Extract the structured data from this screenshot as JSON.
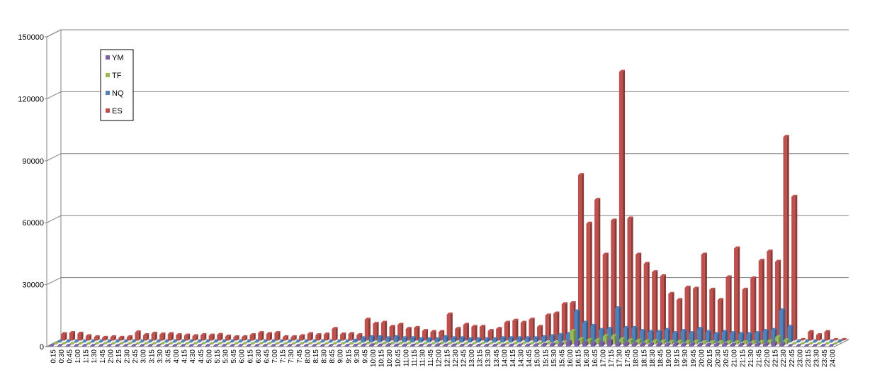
{
  "chart_data": {
    "type": "bar",
    "title": "",
    "xlabel": "",
    "ylabel": "",
    "ylim": [
      0,
      150000
    ],
    "yticks": [
      0,
      30000,
      60000,
      90000,
      120000,
      150000
    ],
    "grid": true,
    "legend_position": "top-left",
    "categories": [
      "0:15",
      "0:30",
      "0:45",
      "1:00",
      "1:15",
      "1:30",
      "1:45",
      "2:00",
      "2:15",
      "2:30",
      "2:45",
      "3:00",
      "3:15",
      "3:30",
      "3:45",
      "4:00",
      "4:15",
      "4:30",
      "4:45",
      "5:00",
      "5:15",
      "5:30",
      "5:45",
      "6:00",
      "6:15",
      "6:30",
      "6:45",
      "7:00",
      "7:15",
      "7:30",
      "7:45",
      "8:00",
      "8:15",
      "8:30",
      "8:45",
      "9:00",
      "9:15",
      "9:30",
      "9:45",
      "10:00",
      "10:15",
      "10:30",
      "10:45",
      "11:00",
      "11:15",
      "11:30",
      "11:45",
      "12:00",
      "12:15",
      "12:30",
      "12:45",
      "13:00",
      "13:15",
      "13:30",
      "13:45",
      "14:00",
      "14:15",
      "14:30",
      "14:45",
      "15:00",
      "15:15",
      "15:30",
      "15:45",
      "16:00",
      "16:15",
      "16:30",
      "16:45",
      "17:00",
      "17:15",
      "17:30",
      "17:45",
      "18:00",
      "18:15",
      "18:30",
      "18:45",
      "19:00",
      "19:15",
      "19:30",
      "19:45",
      "20:00",
      "20:15",
      "20:30",
      "20:45",
      "21:00",
      "21:15",
      "21:30",
      "21:45",
      "22:00",
      "22:15",
      "22:30",
      "22:45",
      "23:00",
      "23:15",
      "23:30",
      "23:45",
      "24:00"
    ],
    "series": [
      {
        "name": "YM",
        "color": "#7f5fa9",
        "values": [
          0,
          0,
          0,
          0,
          0,
          0,
          0,
          0,
          0,
          0,
          0,
          0,
          0,
          0,
          0,
          0,
          0,
          0,
          0,
          0,
          0,
          0,
          0,
          0,
          0,
          0,
          0,
          0,
          0,
          0,
          0,
          0,
          0,
          0,
          0,
          0,
          200,
          300,
          400,
          500,
          400,
          500,
          400,
          400,
          300,
          300,
          300,
          500,
          400,
          400,
          300,
          300,
          300,
          300,
          300,
          400,
          400,
          400,
          400,
          500,
          700,
          800,
          1000,
          2000,
          2000,
          1500,
          1200,
          1500,
          2500,
          1200,
          1200,
          1000,
          900,
          900,
          1000,
          800,
          900,
          800,
          1000,
          700,
          700,
          800,
          800,
          700,
          700,
          800,
          900,
          1000,
          1500,
          1000,
          0,
          0,
          0,
          0,
          0,
          0
        ]
      },
      {
        "name": "TF",
        "color": "#9bbb59",
        "values": [
          0,
          0,
          0,
          0,
          0,
          0,
          0,
          0,
          0,
          0,
          0,
          0,
          0,
          0,
          0,
          0,
          0,
          0,
          0,
          0,
          0,
          0,
          0,
          0,
          0,
          0,
          0,
          0,
          0,
          0,
          0,
          0,
          0,
          0,
          0,
          0,
          100,
          200,
          300,
          300,
          300,
          300,
          300,
          300,
          200,
          200,
          200,
          400,
          300,
          300,
          200,
          200,
          200,
          200,
          300,
          300,
          300,
          300,
          300,
          400,
          500,
          600,
          800,
          6500,
          2500,
          2000,
          2000,
          4000,
          4000,
          2500,
          2000,
          1800,
          1500,
          1500,
          1500,
          1200,
          1300,
          1200,
          1300,
          1000,
          1000,
          1000,
          1000,
          1000,
          1000,
          1000,
          1200,
          1500,
          3500,
          2000,
          0,
          0,
          0,
          0,
          0,
          0
        ]
      },
      {
        "name": "NQ",
        "color": "#4f81bd",
        "values": [
          0,
          0,
          0,
          0,
          0,
          0,
          0,
          0,
          0,
          0,
          0,
          0,
          0,
          0,
          0,
          0,
          0,
          0,
          0,
          0,
          0,
          0,
          0,
          0,
          0,
          0,
          0,
          0,
          0,
          0,
          0,
          0,
          0,
          0,
          0,
          0,
          800,
          2000,
          2500,
          2500,
          2000,
          2500,
          2000,
          2000,
          1500,
          1500,
          1500,
          2500,
          2000,
          2000,
          1500,
          1500,
          1500,
          1500,
          2000,
          2000,
          2000,
          2000,
          2000,
          2500,
          3000,
          3500,
          4000,
          15000,
          9500,
          8000,
          6000,
          6500,
          16500,
          7000,
          7000,
          5500,
          5000,
          5000,
          6000,
          4500,
          5500,
          4500,
          6500,
          5000,
          4000,
          5000,
          4500,
          4000,
          4000,
          4500,
          5500,
          6000,
          15500,
          7500,
          0,
          0,
          0,
          0,
          0,
          0
        ]
      },
      {
        "name": "ES",
        "color": "#c0504d",
        "values": [
          3000,
          3500,
          3200,
          2000,
          1500,
          1200,
          1500,
          1200,
          1500,
          3800,
          2500,
          3200,
          2800,
          3000,
          2500,
          2300,
          2000,
          2500,
          2300,
          2600,
          1800,
          1500,
          1500,
          2500,
          3500,
          3000,
          3500,
          1500,
          1500,
          2000,
          3000,
          2500,
          2800,
          5500,
          2800,
          3000,
          2500,
          10000,
          8000,
          8500,
          6500,
          7500,
          5500,
          6000,
          4500,
          4000,
          4000,
          12500,
          5500,
          7500,
          6500,
          6500,
          4500,
          5500,
          8500,
          9500,
          8500,
          10000,
          6500,
          12000,
          13000,
          17500,
          18000,
          80000,
          56500,
          68000,
          41500,
          58000,
          130000,
          59000,
          41500,
          37000,
          33000,
          31000,
          22500,
          19500,
          25500,
          25000,
          41500,
          24500,
          19500,
          30500,
          44500,
          24500,
          30000,
          38500,
          43000,
          38000,
          98500,
          69500,
          0,
          4000,
          2500,
          4000,
          0,
          0
        ]
      }
    ]
  }
}
